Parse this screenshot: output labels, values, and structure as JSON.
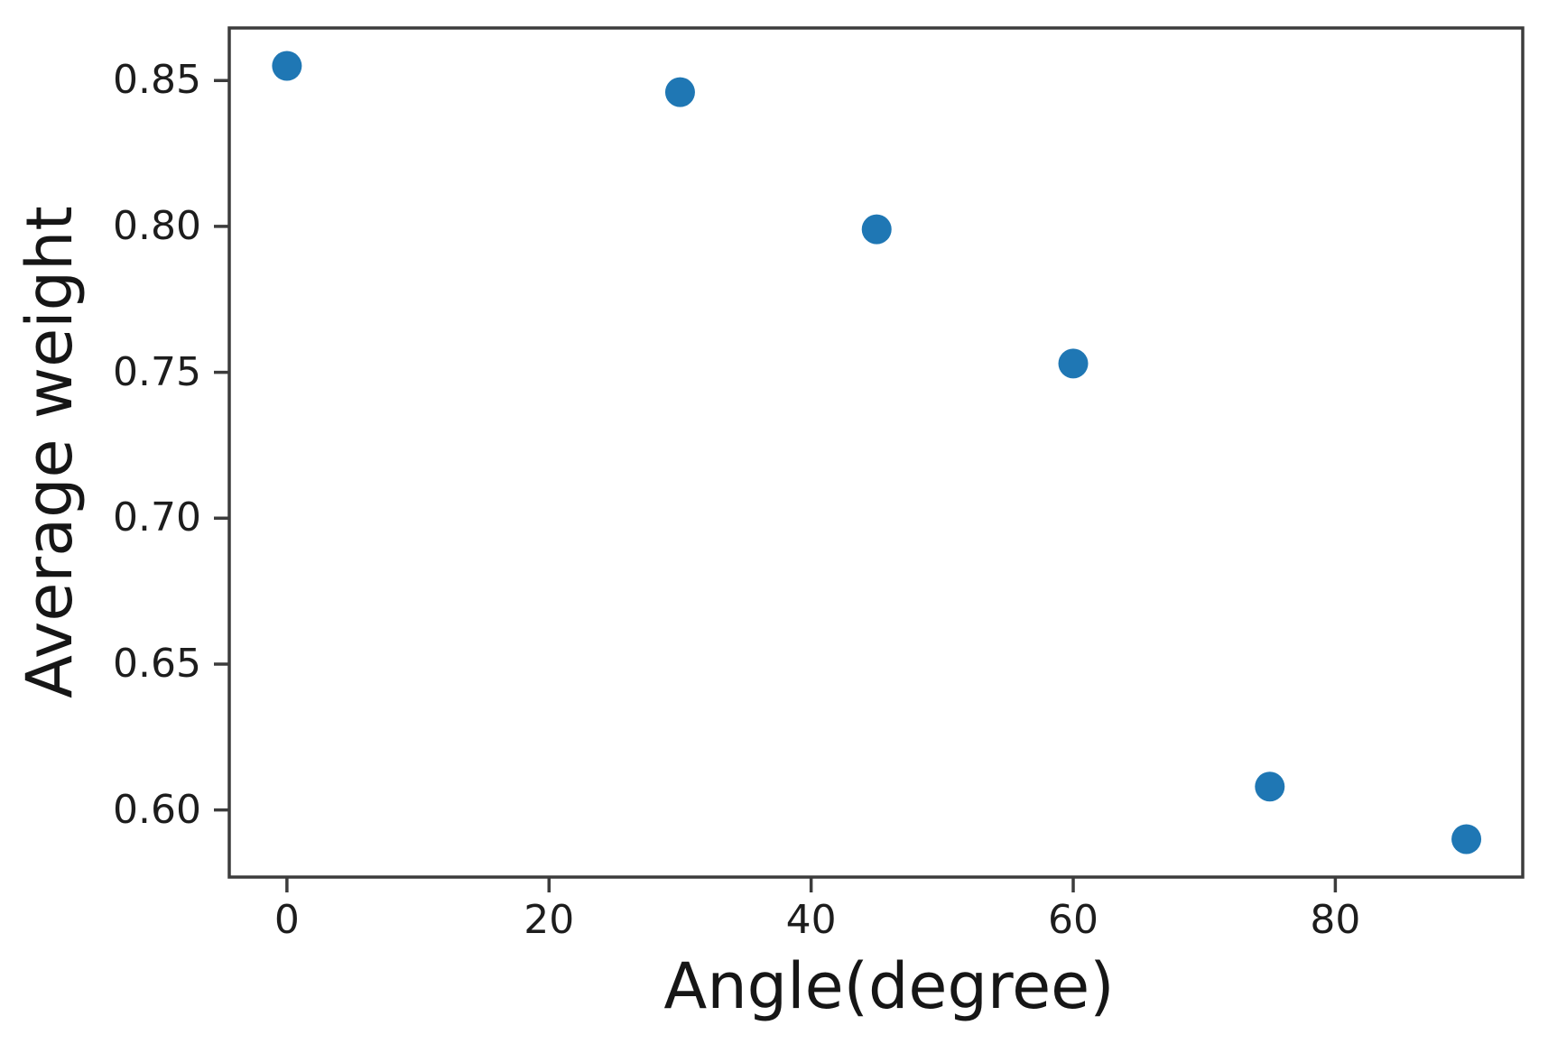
{
  "figure": {
    "background_color": "#ffffff",
    "axes_color": "#3c3c3c",
    "text_color": "#1d1d1d"
  },
  "chart_data": {
    "type": "scatter",
    "title": "",
    "xlabel": "Angle(degree)",
    "ylabel": "Average weight",
    "series": [
      {
        "name": "average-weight-vs-angle",
        "x": [
          0,
          30,
          45,
          60,
          75,
          90
        ],
        "y": [
          0.855,
          0.846,
          0.799,
          0.753,
          0.608,
          0.59
        ]
      }
    ],
    "xlim": [
      -4.4,
      94.3
    ],
    "ylim": [
      0.577,
      0.868
    ],
    "xticks": [
      0,
      20,
      40,
      60,
      80
    ],
    "xtick_labels": [
      "0",
      "20",
      "40",
      "60",
      "80"
    ],
    "yticks": [
      0.85,
      0.8,
      0.75,
      0.7,
      0.65,
      0.6
    ],
    "ytick_labels": [
      "0.85",
      "0.80",
      "0.75",
      "0.70",
      "0.65",
      "0.60"
    ],
    "grid": false,
    "legend_position": "none",
    "marker_color": "#1f77b4"
  }
}
